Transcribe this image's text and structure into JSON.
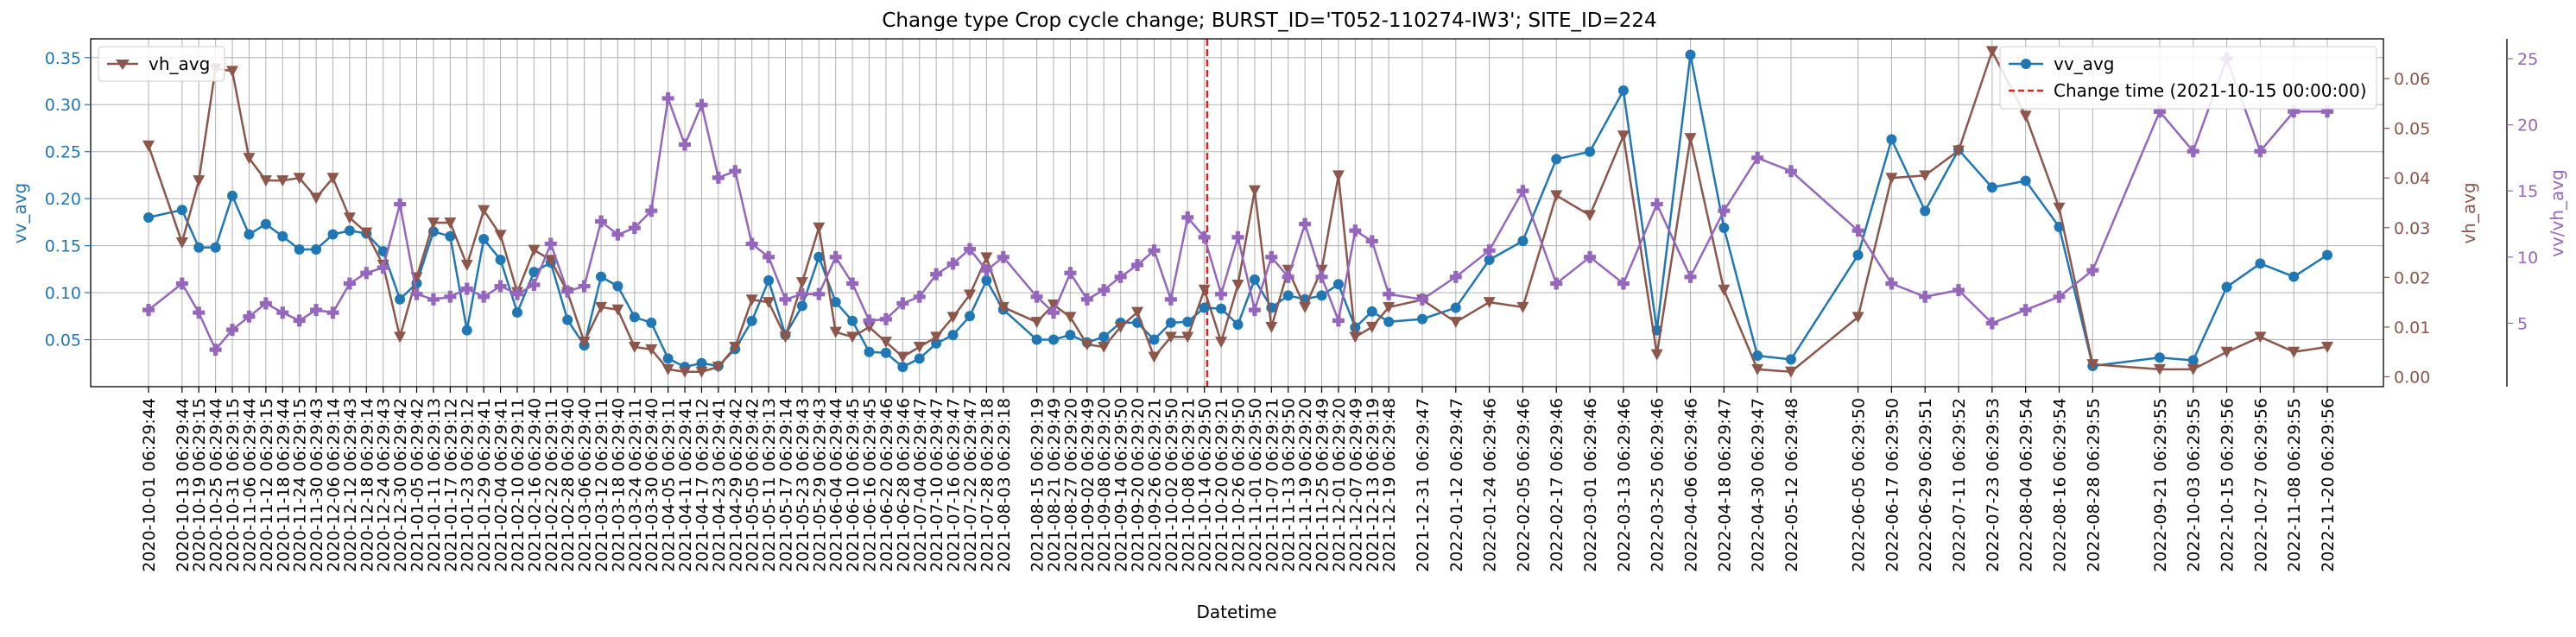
{
  "chart_data": {
    "type": "line",
    "title": "Change type Crop cycle change; BURST_ID='T052-110274-IW3'; SITE_ID=224",
    "xlabel": "Datetime",
    "ylabel_left": "vv_avg",
    "ylabel_right": "vh_avg",
    "ylabel_right2": "vv/vh_avg",
    "grid": true,
    "ylim_left": [
      0.0,
      0.37
    ],
    "ylim_right": [
      -0.002,
      0.068
    ],
    "ylim_right2": [
      0.2,
      26.5
    ],
    "yticks_left": [
      "0.05",
      "0.10",
      "0.15",
      "0.20",
      "0.25",
      "0.30",
      "0.35"
    ],
    "yticks_right": [
      "0.00",
      "0.01",
      "0.02",
      "0.03",
      "0.04",
      "0.05",
      "0.06"
    ],
    "yticks_right2": [
      "5",
      "10",
      "15",
      "20",
      "25"
    ],
    "legend_left": {
      "placement": "top-left",
      "entries": [
        "vh_avg"
      ]
    },
    "legend_right": {
      "placement": "top-right",
      "entries": [
        "vv_avg",
        "Change time (2021-10-15 00:00:00)"
      ]
    },
    "change_time": "2021-10-15",
    "x_dates": [
      "2020-10-01",
      "2020-10-13",
      "2020-10-19",
      "2020-10-25",
      "2020-10-31",
      "2020-11-06",
      "2020-11-12",
      "2020-11-18",
      "2020-11-24",
      "2020-11-30",
      "2020-12-06",
      "2020-12-12",
      "2020-12-18",
      "2020-12-24",
      "2020-12-30",
      "2021-01-05",
      "2021-01-11",
      "2021-01-17",
      "2021-01-23",
      "2021-01-29",
      "2021-02-04",
      "2021-02-10",
      "2021-02-16",
      "2021-02-22",
      "2021-02-28",
      "2021-03-06",
      "2021-03-12",
      "2021-03-18",
      "2021-03-24",
      "2021-03-30",
      "2021-04-05",
      "2021-04-11",
      "2021-04-17",
      "2021-04-23",
      "2021-04-29",
      "2021-05-05",
      "2021-05-11",
      "2021-05-17",
      "2021-05-23",
      "2021-05-29",
      "2021-06-04",
      "2021-06-10",
      "2021-06-16",
      "2021-06-22",
      "2021-06-28",
      "2021-07-04",
      "2021-07-10",
      "2021-07-16",
      "2021-07-22",
      "2021-07-28",
      "2021-08-03",
      "2021-08-15",
      "2021-08-21",
      "2021-08-27",
      "2021-09-02",
      "2021-09-08",
      "2021-09-14",
      "2021-09-20",
      "2021-09-26",
      "2021-10-02",
      "2021-10-08",
      "2021-10-14",
      "2021-10-20",
      "2021-10-26",
      "2021-11-01",
      "2021-11-07",
      "2021-11-13",
      "2021-11-19",
      "2021-11-25",
      "2021-12-01",
      "2021-12-07",
      "2021-12-13",
      "2021-12-19",
      "2021-12-31",
      "2022-01-12",
      "2022-01-24",
      "2022-02-05",
      "2022-02-17",
      "2022-03-01",
      "2022-03-13",
      "2022-03-25",
      "2022-04-06",
      "2022-04-18",
      "2022-04-30",
      "2022-05-12",
      "2022-06-05",
      "2022-06-17",
      "2022-06-29",
      "2022-07-11",
      "2022-07-23",
      "2022-08-04",
      "2022-08-16",
      "2022-08-28",
      "2022-09-21",
      "2022-10-03",
      "2022-10-15",
      "2022-10-27",
      "2022-11-08",
      "2022-11-20"
    ],
    "x_tick_labels": [
      "2020-10-01 06:29:44",
      "2020-10-13 06:29:44",
      "2020-10-19 06:29:15",
      "2020-10-25 06:29:44",
      "2020-10-31 06:29:15",
      "2020-11-06 06:29:44",
      "2020-11-12 06:29:15",
      "2020-11-18 06:29:44",
      "2020-11-24 06:29:15",
      "2020-11-30 06:29:43",
      "2020-12-06 06:29:14",
      "2020-12-12 06:29:43",
      "2020-12-18 06:29:14",
      "2020-12-24 06:29:43",
      "2020-12-30 06:29:42",
      "2021-01-05 06:29:42",
      "2021-01-11 06:29:13",
      "2021-01-17 06:29:12",
      "2021-01-23 06:29:12",
      "2021-01-29 06:29:41",
      "2021-02-04 06:29:41",
      "2021-02-10 06:29:11",
      "2021-02-16 06:29:40",
      "2021-02-22 06:29:11",
      "2021-02-28 06:29:40",
      "2021-03-06 06:29:40",
      "2021-03-12 06:29:11",
      "2021-03-18 06:29:40",
      "2021-03-24 06:29:11",
      "2021-03-30 06:29:40",
      "2021-04-05 06:29:11",
      "2021-04-11 06:29:41",
      "2021-04-17 06:29:12",
      "2021-04-23 06:29:41",
      "2021-04-29 06:29:42",
      "2021-05-05 06:29:42",
      "2021-05-11 06:29:13",
      "2021-05-17 06:29:14",
      "2021-05-23 06:29:43",
      "2021-05-29 06:29:43",
      "2021-06-04 06:29:44",
      "2021-06-10 06:29:45",
      "2021-06-16 06:29:45",
      "2021-06-22 06:29:46",
      "2021-06-28 06:29:46",
      "2021-07-04 06:29:47",
      "2021-07-10 06:29:47",
      "2021-07-16 06:29:47",
      "2021-07-22 06:29:47",
      "2021-07-28 06:29:18",
      "2021-08-03 06:29:18",
      "2021-08-15 06:29:19",
      "2021-08-21 06:29:49",
      "2021-08-27 06:29:20",
      "2021-09-02 06:29:49",
      "2021-09-08 06:29:20",
      "2021-09-14 06:29:50",
      "2021-09-20 06:29:20",
      "2021-09-26 06:29:21",
      "2021-10-02 06:29:50",
      "2021-10-08 06:29:21",
      "2021-10-14 06:29:50",
      "2021-10-20 06:29:21",
      "2021-10-26 06:29:50",
      "2021-11-01 06:29:50",
      "2021-11-07 06:29:21",
      "2021-11-13 06:29:50",
      "2021-11-19 06:29:20",
      "2021-11-25 06:29:49",
      "2021-12-01 06:29:20",
      "2021-12-07 06:29:49",
      "2021-12-13 06:29:19",
      "2021-12-19 06:29:48",
      "2021-12-31 06:29:47",
      "2022-01-12 06:29:47",
      "2022-01-24 06:29:46",
      "2022-02-05 06:29:46",
      "2022-02-17 06:29:46",
      "2022-03-01 06:29:46",
      "2022-03-13 06:29:46",
      "2022-03-25 06:29:46",
      "2022-04-06 06:29:46",
      "2022-04-18 06:29:47",
      "2022-04-30 06:29:47",
      "2022-05-12 06:29:48",
      "2022-06-05 06:29:50",
      "2022-06-17 06:29:50",
      "2022-06-29 06:29:51",
      "2022-07-11 06:29:52",
      "2022-07-23 06:29:53",
      "2022-08-04 06:29:54",
      "2022-08-16 06:29:54",
      "2022-08-28 06:29:55",
      "2022-09-21 06:29:55",
      "2022-10-03 06:29:55",
      "2022-10-15 06:29:56",
      "2022-10-27 06:29:56",
      "2022-11-08 06:29:55",
      "2022-11-20 06:29:56"
    ],
    "series": [
      {
        "name": "vv_avg",
        "axis": "left",
        "color": "#1f77b4",
        "marker": "circle",
        "values": [
          0.18,
          0.188,
          0.148,
          0.148,
          0.203,
          0.162,
          0.173,
          0.16,
          0.146,
          0.146,
          0.162,
          0.166,
          0.163,
          0.144,
          0.093,
          0.11,
          0.165,
          0.16,
          0.06,
          0.157,
          0.135,
          0.079,
          0.122,
          0.132,
          0.071,
          0.044,
          0.117,
          0.107,
          0.074,
          0.068,
          0.03,
          0.021,
          0.025,
          0.022,
          0.04,
          0.07,
          0.113,
          0.055,
          0.086,
          0.138,
          0.09,
          0.07,
          0.037,
          0.036,
          0.021,
          0.03,
          0.046,
          0.055,
          0.075,
          0.113,
          0.082,
          0.05,
          0.05,
          0.055,
          0.047,
          0.053,
          0.068,
          0.068,
          0.05,
          0.068,
          0.069,
          0.084,
          0.083,
          0.066,
          0.114,
          0.084,
          0.097,
          0.093,
          0.097,
          0.109,
          0.063,
          0.08,
          0.069,
          0.072,
          0.084,
          0.135,
          0.155,
          0.242,
          0.25,
          0.315,
          0.06,
          0.353,
          0.169,
          0.033,
          0.029,
          0.14,
          0.263,
          0.187,
          0.252,
          0.212,
          0.219,
          0.17,
          0.022,
          0.031,
          0.028,
          0.106,
          0.131,
          0.117,
          0.14
        ]
      },
      {
        "name": "vh_avg",
        "axis": "right",
        "color": "#8c564b",
        "marker": "triangle-down",
        "values": [
          0.0465,
          0.027,
          0.0395,
          0.062,
          0.0615,
          0.044,
          0.0395,
          0.0395,
          0.04,
          0.036,
          0.04,
          0.032,
          0.029,
          0.0225,
          0.008,
          0.02,
          0.031,
          0.031,
          0.0225,
          0.0335,
          0.0285,
          0.017,
          0.0255,
          0.0235,
          0.017,
          0.007,
          0.014,
          0.0135,
          0.006,
          0.0055,
          0.0015,
          0.001,
          0.001,
          0.002,
          0.006,
          0.0155,
          0.015,
          0.008,
          0.019,
          0.03,
          0.009,
          0.008,
          0.01,
          0.007,
          0.004,
          0.006,
          0.008,
          0.012,
          0.0165,
          0.024,
          0.014,
          0.011,
          0.0145,
          0.012,
          0.0065,
          0.006,
          0.01,
          0.013,
          0.004,
          0.008,
          0.008,
          0.0175,
          0.007,
          0.0185,
          0.0375,
          0.01,
          0.0215,
          0.014,
          0.0215,
          0.0405,
          0.008,
          0.01,
          0.014,
          0.0155,
          0.011,
          0.015,
          0.014,
          0.0365,
          0.0325,
          0.0485,
          0.0045,
          0.048,
          0.0175,
          0.0015,
          0.001,
          0.012,
          0.04,
          0.0405,
          0.0455,
          0.0655,
          0.0525,
          0.034,
          0.0025,
          0.0015,
          0.0015,
          0.005,
          0.008,
          0.005,
          0.006
        ]
      },
      {
        "name": "vv/vh_avg",
        "axis": "right2",
        "color": "#9467bd",
        "marker": "plus",
        "values": [
          6.0,
          8.0,
          5.8,
          3.0,
          4.5,
          5.5,
          6.5,
          5.8,
          5.2,
          6.0,
          5.8,
          8.0,
          8.8,
          9.2,
          14.0,
          7.2,
          6.8,
          7.0,
          7.6,
          7.0,
          7.8,
          7.2,
          7.9,
          11.0,
          7.4,
          7.8,
          12.7,
          11.7,
          12.2,
          13.5,
          22.0,
          18.5,
          21.5,
          16.0,
          16.5,
          11.0,
          10.0,
          6.8,
          7.2,
          7.2,
          10.0,
          8.0,
          5.2,
          5.3,
          6.5,
          7.0,
          8.7,
          9.5,
          10.6,
          9.0,
          10.0,
          7.0,
          5.8,
          8.8,
          6.8,
          7.5,
          8.5,
          9.4,
          10.5,
          6.8,
          13.0,
          11.5,
          7.2,
          11.5,
          6.0,
          10.0,
          8.5,
          12.5,
          8.5,
          5.2,
          12.0,
          11.2,
          7.2,
          6.8,
          8.5,
          10.5,
          15.0,
          8.0,
          10.0,
          8.0,
          14.0,
          8.5,
          13.5,
          17.5,
          16.5,
          12.0,
          8.0,
          7.0,
          7.5,
          5.0,
          6.0,
          7.0,
          9.0,
          21.0,
          18.0,
          25.0,
          18.0,
          21.0,
          21.0
        ]
      }
    ]
  }
}
